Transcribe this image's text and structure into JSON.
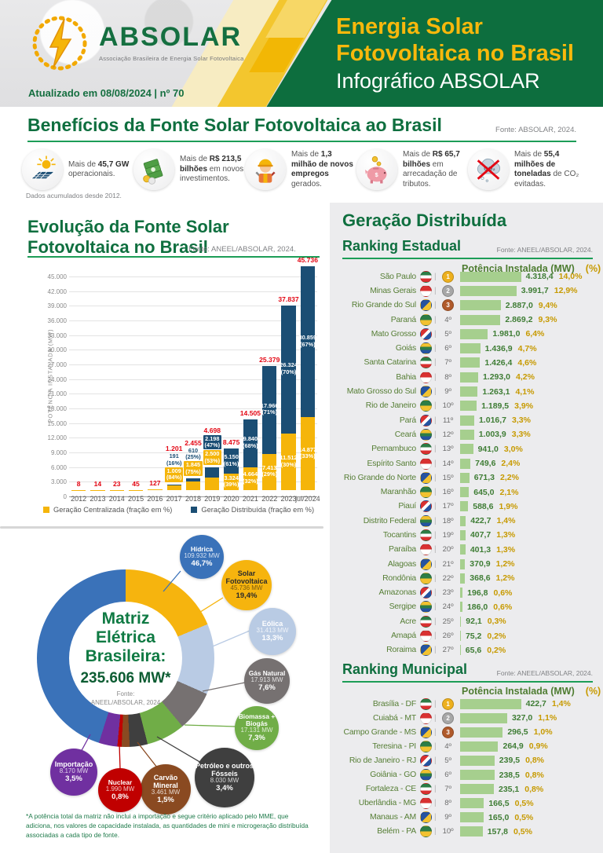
{
  "header": {
    "logo_name": "ABSOLAR",
    "logo_tagline": "Associação Brasileira de Energia Solar Fotovoltaica",
    "updated": "Atualizado em 08/08/2024 | nº 70",
    "title_line1": "Energia Solar",
    "title_line2": "Fotovoltaica no Brasil",
    "title_line3": "Infográfico ABSOLAR"
  },
  "benefits": {
    "title": "Benefícios da Fonte Solar Fotovoltaica ao Brasil",
    "fonte": "Fonte: ABSOLAR, 2024.",
    "note": "Dados acumulados desde 2012.",
    "items": [
      {
        "icon": "solar-panel-icon",
        "pre": "Mais de ",
        "bold": "45,7 GW",
        "post": " operacionais."
      },
      {
        "icon": "money-stack-icon",
        "pre": "Mais de ",
        "bold": "R$ 213,5 bilhões",
        "post": " em novos investimentos."
      },
      {
        "icon": "worker-icon",
        "pre": "Mais de ",
        "bold": "1,3 milhão de novos empregos",
        "post": " gerados."
      },
      {
        "icon": "piggy-bank-icon",
        "pre": "Mais de ",
        "bold": "R$ 65,7 bilhões",
        "post": " em arrecadação de tributos."
      },
      {
        "icon": "co2-cloud-icon",
        "pre": "Mais de ",
        "bold": "55,4 milhões de toneladas",
        "post": " de CO₂ evitadas."
      }
    ]
  },
  "evolution": {
    "title_line1": "Evolução da Fonte Solar",
    "title_line2": "Fotovoltaica no Brasil",
    "fonte": "Fonte: ANEEL/ABSOLAR, 2024."
  },
  "matrix": {
    "title": "Matriz Elétrica Brasileira:",
    "total": "235.606 MW*",
    "fonte_line1": "Fonte:",
    "fonte_line2": "ANEEL/ABSOLAR, 2024",
    "footnote": "*A potência total da matriz não inclui a importação e segue critério aplicado pelo MME, que adiciona, nos valores de capacidade instalada, as quantidades de mini e microgeração distribuída associadas a cada tipo de fonte."
  },
  "panel": {
    "title": "Geração Distribuída",
    "state_title": "Ranking Estadual",
    "state_fonte": "Fonte: ANEEL/ABSOLAR, 2024.",
    "municipal_title": "Ranking Municipal",
    "municipal_fonte": "Fonte: ANEEL/ABSOLAR, 2024.",
    "col_header_mw": "Potência Instalada (MW)",
    "col_header_pct": "(%)"
  },
  "colors": {
    "brand_green": "#0d6e3e",
    "accent_yellow": "#f5b50a",
    "gc_yellow": "#f5b50a",
    "gd_navy": "#1b4e74",
    "total_red": "#e30613",
    "ranking_bar_green": "#a6cf8e",
    "value_green": "#3f7d35",
    "pct_gold": "#c79a00"
  },
  "chart_data": [
    {
      "id": "evolution",
      "type": "bar",
      "stacked": true,
      "title": "Evolução da Fonte Solar Fotovoltaica no Brasil",
      "ylabel": "POTÊNCIA INSTALADA  (MW)",
      "ylim": [
        0,
        45000
      ],
      "ytick_step": 3000,
      "grid": true,
      "legend_position": "bottom",
      "categories": [
        "2012",
        "2013",
        "2014",
        "2015",
        "2016",
        "2017",
        "2018",
        "2019",
        "2020",
        "2021",
        "2022",
        "2023",
        "jul/2024"
      ],
      "series": [
        {
          "name": "Geração Centralizada (fração em %)",
          "color": "#f5b50a",
          "values": [
            8,
            14,
            23,
            45,
            127,
            1009,
            1845,
            2500,
            3324,
            4664,
            7413,
            11512,
            14877
          ],
          "value_labels": [
            "",
            "",
            "",
            "",
            "",
            "1.009",
            "1.845",
            "2.500",
            "3.324",
            "4.664",
            "7.413",
            "11.512",
            "14.877"
          ],
          "pct_labels": [
            "",
            "",
            "",
            "",
            "",
            "(84%)",
            "(75%)",
            "(53%)",
            "(39%)",
            "(32%)",
            "(29%)",
            "(30%)",
            "(33%)"
          ]
        },
        {
          "name": "Geração Distribuída (fração em %)",
          "color": "#1b4e74",
          "values": [
            0,
            0,
            0,
            0,
            0,
            191,
            610,
            2198,
            5150,
            9840,
            17966,
            26324,
            30859
          ],
          "value_labels": [
            "",
            "",
            "",
            "",
            "",
            "191",
            "610",
            "2.198",
            "5.150",
            "9.840",
            "17.966",
            "26.324",
            "30.859"
          ],
          "pct_labels": [
            "",
            "",
            "",
            "",
            "",
            "(16%)",
            "(25%)",
            "(47%)",
            "(61%)",
            "(68%)",
            "(71%)",
            "(70%)",
            "(67%)"
          ]
        }
      ],
      "totals": {
        "name": "Total (GC+GD)",
        "color": "#e30613",
        "values": [
          8,
          14,
          23,
          45,
          127,
          1201,
          2455,
          4698,
          8475,
          14505,
          25379,
          37837,
          45736
        ],
        "labels": [
          "8",
          "14",
          "23",
          "45",
          "127",
          "1.201",
          "2.455",
          "4.698",
          "8.475",
          "14.505",
          "25.379",
          "37.837",
          "45.736"
        ]
      }
    },
    {
      "id": "matrix",
      "type": "pie",
      "title": "Matriz Elétrica Brasileira: 235.606 MW*",
      "slices": [
        {
          "name": "Hídrica",
          "mw": "109.932 MW",
          "pct": "46,7%",
          "value": 46.7,
          "color": "#3a72b9"
        },
        {
          "name": "Solar Fotovoltaica",
          "mw": "45.736 MW",
          "pct": "19,4%",
          "value": 19.4,
          "color": "#f6b40e"
        },
        {
          "name": "Eólica",
          "mw": "31.413 MW",
          "pct": "13,3%",
          "value": 13.3,
          "color": "#b9cbe4"
        },
        {
          "name": "Gás Natural",
          "mw": "17.913 MW",
          "pct": "7,6%",
          "value": 7.6,
          "color": "#767171"
        },
        {
          "name": "Biomassa + Biogás",
          "mw": "17.131 MW",
          "pct": "7,3%",
          "value": 7.3,
          "color": "#70ad47"
        },
        {
          "name": "Petróleo e outros Fósseis",
          "mw": "8.030 MW",
          "pct": "3,4%",
          "value": 3.4,
          "color": "#3f3f3f"
        },
        {
          "name": "Carvão Mineral",
          "mw": "3.461 MW",
          "pct": "1,5%",
          "value": 1.5,
          "color": "#8a4a21"
        },
        {
          "name": "Nuclear",
          "mw": "1.990 MW",
          "pct": "0,8%",
          "value": 0.8,
          "color": "#c00000"
        },
        {
          "name": "Importação",
          "mw": "8.170 MW",
          "pct": "3,5%",
          "value": 3.5,
          "color": "#7030a0"
        }
      ]
    },
    {
      "id": "state_ranking",
      "type": "bar",
      "title": "Ranking Estadual",
      "rows": [
        {
          "rank": 1,
          "name": "São Paulo",
          "mw": 4318.4,
          "mw_label": "4.318,4",
          "pct": "14,0%"
        },
        {
          "rank": 2,
          "name": "Minas Gerais",
          "mw": 3991.7,
          "mw_label": "3.991,7",
          "pct": "12,9%"
        },
        {
          "rank": 3,
          "name": "Rio Grande do Sul",
          "mw": 2887.0,
          "mw_label": "2.887,0",
          "pct": "9,4%"
        },
        {
          "rank": 4,
          "name": "Paraná",
          "mw": 2869.2,
          "mw_label": "2.869,2",
          "pct": "9,3%"
        },
        {
          "rank": 5,
          "name": "Mato Grosso",
          "mw": 1981.0,
          "mw_label": "1.981,0",
          "pct": "6,4%"
        },
        {
          "rank": 6,
          "name": "Goiás",
          "mw": 1436.9,
          "mw_label": "1.436,9",
          "pct": "4,7%"
        },
        {
          "rank": 7,
          "name": "Santa Catarina",
          "mw": 1426.4,
          "mw_label": "1.426,4",
          "pct": "4,6%"
        },
        {
          "rank": 8,
          "name": "Bahia",
          "mw": 1293.0,
          "mw_label": "1.293,0",
          "pct": "4,2%"
        },
        {
          "rank": 9,
          "name": "Mato Grosso do Sul",
          "mw": 1263.1,
          "mw_label": "1.263,1",
          "pct": "4,1%"
        },
        {
          "rank": 10,
          "name": "Rio de Janeiro",
          "mw": 1189.5,
          "mw_label": "1.189,5",
          "pct": "3,9%"
        },
        {
          "rank": 11,
          "name": "Pará",
          "mw": 1016.7,
          "mw_label": "1.016,7",
          "pct": "3,3%"
        },
        {
          "rank": 12,
          "name": "Ceará",
          "mw": 1003.9,
          "mw_label": "1.003,9",
          "pct": "3,3%"
        },
        {
          "rank": 13,
          "name": "Pernambuco",
          "mw": 941.0,
          "mw_label": "941,0",
          "pct": "3,0%"
        },
        {
          "rank": 14,
          "name": "Espírito Santo",
          "mw": 749.6,
          "mw_label": "749,6",
          "pct": "2,4%"
        },
        {
          "rank": 15,
          "name": "Rio Grande do Norte",
          "mw": 671.3,
          "mw_label": "671,3",
          "pct": "2,2%"
        },
        {
          "rank": 16,
          "name": "Maranhão",
          "mw": 645.0,
          "mw_label": "645,0",
          "pct": "2,1%"
        },
        {
          "rank": 17,
          "name": "Piauí",
          "mw": 588.6,
          "mw_label": "588,6",
          "pct": "1,9%"
        },
        {
          "rank": 18,
          "name": "Distrito Federal",
          "mw": 422.7,
          "mw_label": "422,7",
          "pct": "1,4%"
        },
        {
          "rank": 19,
          "name": "Tocantins",
          "mw": 407.7,
          "mw_label": "407,7",
          "pct": "1,3%"
        },
        {
          "rank": 20,
          "name": "Paraíba",
          "mw": 401.3,
          "mw_label": "401,3",
          "pct": "1,3%"
        },
        {
          "rank": 21,
          "name": "Alagoas",
          "mw": 370.9,
          "mw_label": "370,9",
          "pct": "1,2%"
        },
        {
          "rank": 22,
          "name": "Rondônia",
          "mw": 368.6,
          "mw_label": "368,6",
          "pct": "1,2%"
        },
        {
          "rank": 23,
          "name": "Amazonas",
          "mw": 196.8,
          "mw_label": "196,8",
          "pct": "0,6%"
        },
        {
          "rank": 24,
          "name": "Sergipe",
          "mw": 186.0,
          "mw_label": "186,0",
          "pct": "0,6%"
        },
        {
          "rank": 25,
          "name": "Acre",
          "mw": 92.1,
          "mw_label": "92,1",
          "pct": "0,3%"
        },
        {
          "rank": 26,
          "name": "Amapá",
          "mw": 75.2,
          "mw_label": "75,2",
          "pct": "0,2%"
        },
        {
          "rank": 27,
          "name": "Roraima",
          "mw": 65.6,
          "mw_label": "65,6",
          "pct": "0,2%"
        }
      ]
    },
    {
      "id": "municipal_ranking",
      "type": "bar",
      "title": "Ranking Municipal",
      "rows": [
        {
          "rank": 1,
          "name": "Brasília - DF",
          "mw": 422.7,
          "mw_label": "422,7",
          "pct": "1,4%"
        },
        {
          "rank": 2,
          "name": "Cuiabá - MT",
          "mw": 327.0,
          "mw_label": "327,0",
          "pct": "1,1%"
        },
        {
          "rank": 3,
          "name": "Campo Grande - MS",
          "mw": 296.5,
          "mw_label": "296,5",
          "pct": "1,0%"
        },
        {
          "rank": 4,
          "name": "Teresina - PI",
          "mw": 264.9,
          "mw_label": "264,9",
          "pct": "0,9%"
        },
        {
          "rank": 5,
          "name": "Rio de Janeiro - RJ",
          "mw": 239.5,
          "mw_label": "239,5",
          "pct": "0,8%"
        },
        {
          "rank": 6,
          "name": "Goiânia - GO",
          "mw": 238.5,
          "mw_label": "238,5",
          "pct": "0,8%"
        },
        {
          "rank": 7,
          "name": "Fortaleza - CE",
          "mw": 235.1,
          "mw_label": "235,1",
          "pct": "0,8%"
        },
        {
          "rank": 8,
          "name": "Uberlândia - MG",
          "mw": 166.5,
          "mw_label": "166,5",
          "pct": "0,5%"
        },
        {
          "rank": 9,
          "name": "Manaus - AM",
          "mw": 165.0,
          "mw_label": "165,0",
          "pct": "0,5%"
        },
        {
          "rank": 10,
          "name": "Belém - PA",
          "mw": 157.8,
          "mw_label": "157,8",
          "pct": "0,5%"
        }
      ]
    }
  ]
}
